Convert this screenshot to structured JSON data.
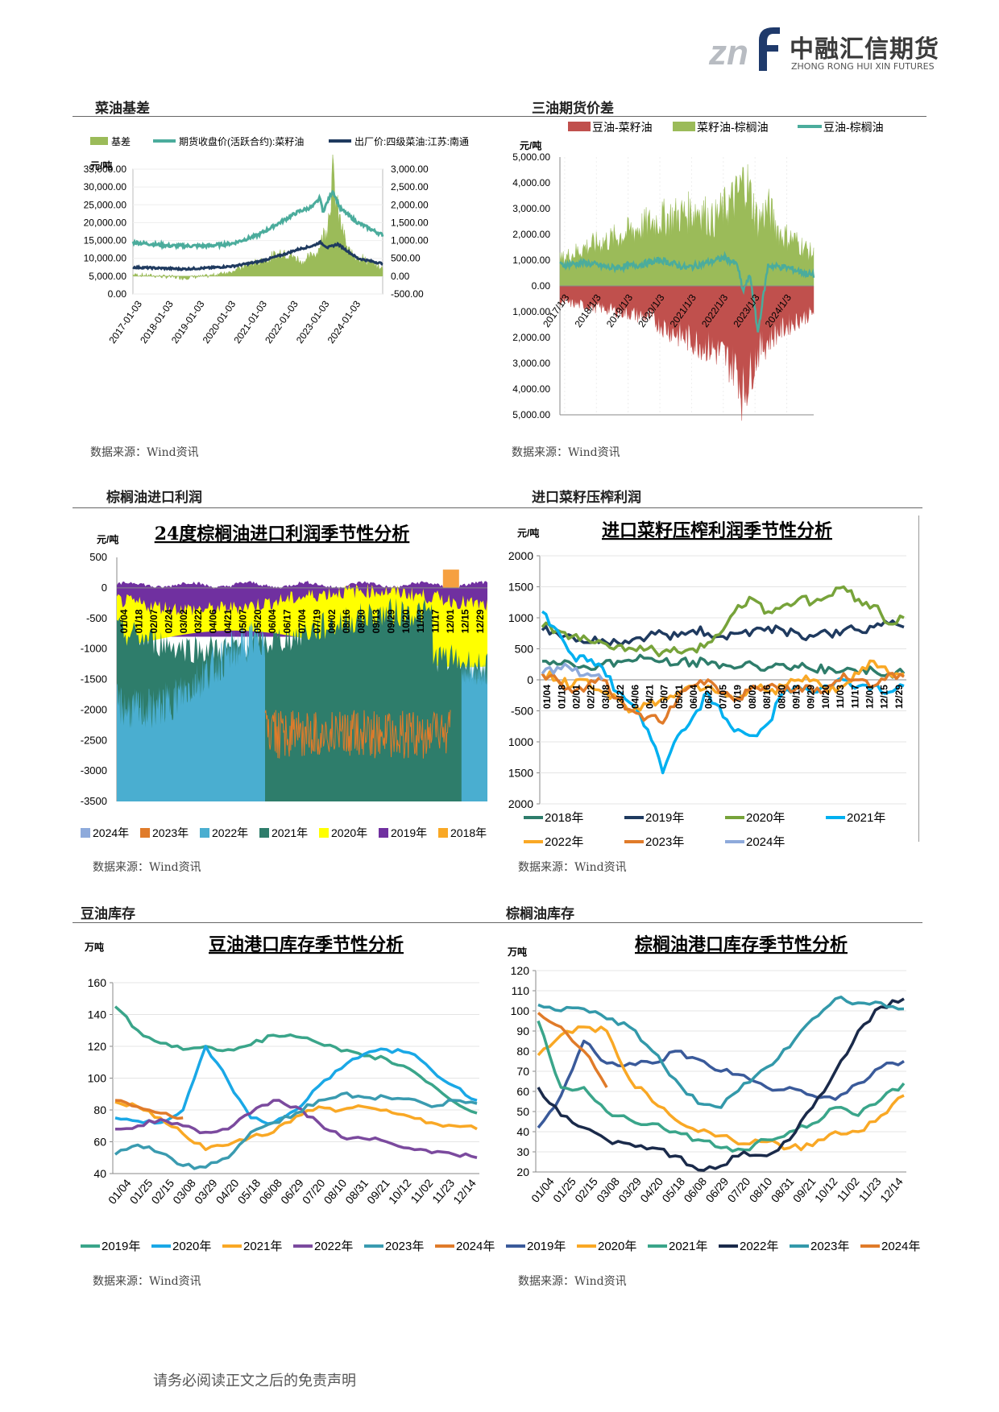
{
  "logo": {
    "cn": "中融汇信期货",
    "en": "ZHONG RONG HUI XIN FUTURES",
    "mark": "znf"
  },
  "sections": [
    {
      "title": "菜油基差",
      "source": "数据来源：Wind资讯"
    },
    {
      "title": "三油期货价差",
      "source": "数据来源：Wind资讯"
    },
    {
      "title": "棕榈油进口利润",
      "source": "数据来源：Wind资讯"
    },
    {
      "title": "进口菜籽压榨利润",
      "source": "数据来源：Wind资讯"
    },
    {
      "title": "豆油库存",
      "source": "数据来源：Wind资讯"
    },
    {
      "title": "棕榈油库存",
      "source": "数据来源：Wind资讯"
    }
  ],
  "footer": "请务必阅读正文之后的免责声明",
  "colors": {
    "green": "#9bbb59",
    "teal": "#4bac9c",
    "navy": "#1f3a5f",
    "red": "#c0504d",
    "yellow": "#ffff00",
    "darkgreen": "#2e7d6b",
    "cyan": "#00b0f0",
    "orange": "#f9a825",
    "dorange": "#e07b2a",
    "lblue": "#8eaadb",
    "purple": "#7030a0",
    "slate": "#3a5a9a",
    "dteal": "#3399aa"
  },
  "chart_data": [
    {
      "type": "line",
      "unit": "元/吨",
      "series": [
        {
          "name": "基差"
        },
        {
          "name": "期货收盘价(活跃合约):菜籽油"
        },
        {
          "name": "出厂价:四级菜油:江苏:南通"
        }
      ],
      "y_left_ticks": [
        "35,000.00",
        "30,000.00",
        "25,000.00",
        "20,000.00",
        "15,000.00",
        "10,000.00",
        "5,000.00",
        "0.00"
      ],
      "y_right_ticks": [
        "3,000.00",
        "2,500.00",
        "2,000.00",
        "1,500.00",
        "1,000.00",
        "500.00",
        "0.00",
        "-500.00"
      ],
      "ylim_left": [
        0,
        35000
      ],
      "ylim_right": [
        -500,
        3000
      ],
      "x_ticks": [
        "2017-01-03",
        "2018-01-03",
        "2019-01-03",
        "2020-01-03",
        "2021-01-03",
        "2022-01-03",
        "2023-01-03",
        "2024-01-03"
      ],
      "futures_path": [
        [
          0,
          14500
        ],
        [
          0.15,
          13500
        ],
        [
          0.3,
          13500
        ],
        [
          0.4,
          14200
        ],
        [
          0.5,
          16500
        ],
        [
          0.6,
          20500
        ],
        [
          0.66,
          23000
        ],
        [
          0.72,
          24500
        ],
        [
          0.75,
          27000
        ],
        [
          0.76,
          23000
        ],
        [
          0.8,
          29000
        ],
        [
          0.83,
          24000
        ],
        [
          0.9,
          20000
        ],
        [
          1,
          16500
        ]
      ],
      "spot_path": [
        [
          0,
          7500
        ],
        [
          0.2,
          7000
        ],
        [
          0.3,
          7300
        ],
        [
          0.4,
          7800
        ],
        [
          0.5,
          9000
        ],
        [
          0.6,
          11000
        ],
        [
          0.66,
          12500
        ],
        [
          0.72,
          13500
        ],
        [
          0.75,
          14500
        ],
        [
          0.78,
          13000
        ],
        [
          0.82,
          14000
        ],
        [
          0.9,
          10000
        ],
        [
          1,
          8500
        ]
      ],
      "basis_path": [
        [
          0,
          50
        ],
        [
          0.2,
          -50
        ],
        [
          0.3,
          0
        ],
        [
          0.4,
          150
        ],
        [
          0.45,
          300
        ],
        [
          0.55,
          500
        ],
        [
          0.6,
          700
        ],
        [
          0.68,
          400
        ],
        [
          0.74,
          700
        ],
        [
          0.78,
          1500
        ],
        [
          0.8,
          2800
        ],
        [
          0.82,
          1800
        ],
        [
          0.86,
          700
        ],
        [
          1,
          200
        ]
      ]
    },
    {
      "type": "area",
      "unit": "元/吨",
      "series": [
        {
          "name": "豆油-菜籽油"
        },
        {
          "name": "菜籽油-棕榈油"
        },
        {
          "name": "豆油-棕榈油"
        }
      ],
      "y_ticks": [
        "5,000.00",
        "4,000.00",
        "3,000.00",
        "2,000.00",
        "1,000.00",
        "0.00",
        "1,000.00",
        "2,000.00",
        "3,000.00",
        "4,000.00",
        "5,000.00"
      ],
      "ylim": [
        -5000,
        5000
      ],
      "x_ticks": [
        "2017/1/3",
        "2018/1/3",
        "2019/1/3",
        "2020/1/3",
        "2021/1/3",
        "2022/1/3",
        "2023/1/3",
        "2024/1/3"
      ],
      "soy_rape_path": [
        [
          0,
          -600
        ],
        [
          0.2,
          -900
        ],
        [
          0.35,
          -1200
        ],
        [
          0.45,
          -1800
        ],
        [
          0.55,
          -2200
        ],
        [
          0.62,
          -2500
        ],
        [
          0.7,
          -3200
        ],
        [
          0.72,
          -4200
        ],
        [
          0.78,
          -2500
        ],
        [
          0.85,
          -1800
        ],
        [
          0.9,
          -1500
        ],
        [
          1,
          -1000
        ]
      ],
      "rape_palm_path": [
        [
          0,
          1000
        ],
        [
          0.1,
          1500
        ],
        [
          0.2,
          1800
        ],
        [
          0.3,
          2200
        ],
        [
          0.4,
          2600
        ],
        [
          0.5,
          2800
        ],
        [
          0.55,
          3000
        ],
        [
          0.6,
          2500
        ],
        [
          0.7,
          3500
        ],
        [
          0.73,
          4200
        ],
        [
          0.78,
          2500
        ],
        [
          0.82,
          3000
        ],
        [
          0.87,
          2000
        ],
        [
          0.92,
          1800
        ],
        [
          1,
          1200
        ]
      ],
      "soy_palm_path": [
        [
          0,
          800
        ],
        [
          0.1,
          900
        ],
        [
          0.2,
          700
        ],
        [
          0.3,
          800
        ],
        [
          0.4,
          1000
        ],
        [
          0.5,
          700
        ],
        [
          0.58,
          900
        ],
        [
          0.65,
          1100
        ],
        [
          0.7,
          800
        ],
        [
          0.72,
          -200
        ],
        [
          0.75,
          400
        ],
        [
          0.78,
          -1800
        ],
        [
          0.82,
          800
        ],
        [
          0.9,
          700
        ],
        [
          1,
          400
        ]
      ]
    },
    {
      "type": "area",
      "title": "24度棕榈油进口利润季节性分析",
      "unit": "元/吨",
      "y_ticks": [
        "500",
        "0",
        "-500",
        "-1000",
        "-1500",
        "-2000",
        "-2500",
        "-3000",
        "-3500"
      ],
      "ylim": [
        -3500,
        500
      ],
      "x_ticks": [
        "01/04",
        "01/18",
        "02/07",
        "02/24",
        "03/02",
        "03/22",
        "04/06",
        "04/21",
        "05/07",
        "05/20",
        "06/04",
        "06/17",
        "07/04",
        "07/19",
        "08/02",
        "08/16",
        "08/30",
        "09/13",
        "09/29",
        "10/20",
        "11/03",
        "11/17",
        "12/01",
        "12/15",
        "12/29"
      ],
      "series": [
        {
          "name": "2024年"
        },
        {
          "name": "2023年"
        },
        {
          "name": "2022年"
        },
        {
          "name": "2021年"
        },
        {
          "name": "2020年"
        },
        {
          "name": "2019年"
        },
        {
          "name": "2018年"
        }
      ]
    },
    {
      "type": "line",
      "title": "进口菜籽压榨利润季节性分析",
      "unit": "元/吨",
      "y_ticks": [
        "2000",
        "1500",
        "1000",
        "500",
        "0",
        "-500",
        "1000",
        "1500",
        "2000"
      ],
      "ylim": [
        -2000,
        2000
      ],
      "x_ticks": [
        "01/04",
        "01/18",
        "02/01",
        "02/22",
        "03/08",
        "03/22",
        "04/06",
        "04/21",
        "05/07",
        "05/21",
        "06/04",
        "06/21",
        "07/05",
        "07/19",
        "08/02",
        "08/16",
        "08/30",
        "09/13",
        "09/29",
        "10/20",
        "11/03",
        "11/17",
        "12/01",
        "12/15",
        "12/29"
      ],
      "series": [
        {
          "name": "2018年",
          "values": [
            300,
            250,
            250,
            200,
            250,
            300,
            300,
            350,
            300,
            250,
            300,
            250,
            250,
            200,
            250,
            200,
            250,
            200,
            150,
            200,
            150,
            100,
            150,
            100,
            100
          ]
        },
        {
          "name": "2019年",
          "values": [
            800,
            750,
            700,
            600,
            650,
            600,
            650,
            700,
            750,
            700,
            800,
            750,
            700,
            750,
            800,
            850,
            800,
            750,
            700,
            750,
            800,
            800,
            850,
            900,
            850
          ]
        },
        {
          "name": "2020年",
          "values": [
            850,
            800,
            700,
            650,
            600,
            550,
            500,
            500,
            450,
            450,
            500,
            600,
            800,
            1200,
            1300,
            1100,
            1200,
            1300,
            1250,
            1350,
            1500,
            1300,
            1200,
            900,
            1000
          ]
        },
        {
          "name": "2021年",
          "values": [
            1100,
            800,
            400,
            300,
            200,
            -200,
            -400,
            -800,
            -1500,
            -900,
            -600,
            -200,
            -600,
            -800,
            -900,
            -700,
            -200,
            -100,
            -200,
            -100,
            0,
            -100,
            -100,
            -200,
            -100
          ]
        },
        {
          "name": "2022年",
          "values": [
            100,
            0,
            -100,
            0,
            -200,
            -300,
            -500,
            -400,
            -300,
            -200,
            -100,
            -100,
            -200,
            -300,
            -100,
            -200,
            -100,
            0,
            0,
            -200,
            -100,
            100,
            300,
            100,
            100
          ]
        },
        {
          "name": "2023年",
          "values": [
            100,
            0,
            -200,
            -100,
            0,
            -300,
            -500,
            -600,
            -700,
            -300,
            -100,
            0,
            -200,
            -300,
            -100,
            -100,
            -200,
            -100,
            -200,
            -100,
            100,
            0,
            -100,
            100,
            50
          ]
        },
        {
          "name": "2024年",
          "values": [
            100,
            200,
            150,
            100,
            0,
            null,
            null,
            null,
            null,
            null,
            null,
            null,
            null,
            null,
            null,
            null,
            null,
            null,
            null,
            null,
            null,
            null,
            null,
            null,
            null
          ]
        }
      ]
    },
    {
      "type": "line",
      "title": "豆油港口库存季节性分析",
      "unit": "万吨",
      "y_ticks": [
        "160",
        "140",
        "120",
        "100",
        "80",
        "60",
        "40"
      ],
      "ylim": [
        40,
        160
      ],
      "x_ticks": [
        "01/04",
        "01/25",
        "02/15",
        "03/08",
        "03/29",
        "04/20",
        "05/18",
        "06/08",
        "06/29",
        "07/20",
        "08/10",
        "08/31",
        "09/21",
        "10/12",
        "11/02",
        "11/23",
        "12/14"
      ],
      "series": [
        {
          "name": "2019年",
          "values": [
            145,
            130,
            122,
            118,
            120,
            118,
            121,
            127,
            126,
            122,
            117,
            114,
            112,
            106,
            96,
            85,
            78
          ]
        },
        {
          "name": "2020年",
          "values": [
            75,
            73,
            72,
            80,
            120,
            98,
            75,
            72,
            80,
            95,
            106,
            115,
            118,
            116,
            105,
            95,
            86
          ]
        },
        {
          "name": "2021年",
          "values": [
            85,
            82,
            75,
            65,
            55,
            58,
            63,
            66,
            76,
            82,
            80,
            82,
            80,
            76,
            72,
            70,
            68
          ]
        },
        {
          "name": "2022年",
          "values": [
            68,
            70,
            74,
            70,
            66,
            68,
            78,
            86,
            82,
            72,
            63,
            62,
            60,
            56,
            53,
            52,
            50
          ]
        },
        {
          "name": "2023年",
          "values": [
            52,
            58,
            53,
            45,
            44,
            50,
            66,
            72,
            78,
            86,
            90,
            88,
            88,
            87,
            82,
            86,
            84
          ]
        },
        {
          "name": "2024年",
          "values": [
            86,
            82,
            78,
            75,
            null,
            null,
            null,
            null,
            null,
            null,
            null,
            null,
            null,
            null,
            null,
            null,
            null
          ]
        }
      ]
    },
    {
      "type": "line",
      "title": "棕榈油港口库存季节性分析",
      "unit": "万吨",
      "y_ticks": [
        "120",
        "110",
        "100",
        "90",
        "80",
        "70",
        "60",
        "50",
        "40",
        "30",
        "20"
      ],
      "ylim": [
        20,
        120
      ],
      "x_ticks": [
        "01/04",
        "01/25",
        "02/15",
        "03/08",
        "03/29",
        "04/20",
        "05/18",
        "06/08",
        "06/29",
        "07/20",
        "08/10",
        "08/31",
        "09/21",
        "10/12",
        "11/02",
        "11/23",
        "12/14"
      ],
      "series": [
        {
          "name": "2019年",
          "values": [
            42,
            58,
            85,
            74,
            74,
            74,
            80,
            76,
            70,
            68,
            62,
            62,
            58,
            56,
            64,
            72,
            75
          ]
        },
        {
          "name": "2020年",
          "values": [
            78,
            88,
            92,
            90,
            66,
            55,
            46,
            40,
            38,
            34,
            35,
            32,
            33,
            40,
            40,
            48,
            58
          ]
        },
        {
          "name": "2021年",
          "values": [
            95,
            62,
            62,
            50,
            46,
            44,
            40,
            36,
            32,
            31,
            36,
            40,
            44,
            52,
            48,
            56,
            64
          ]
        },
        {
          "name": "2022年",
          "values": [
            62,
            48,
            42,
            36,
            34,
            32,
            28,
            21,
            23,
            30,
            28,
            36,
            52,
            70,
            90,
            102,
            106
          ]
        },
        {
          "name": "2023年",
          "values": [
            103,
            100,
            101,
            96,
            92,
            80,
            66,
            54,
            52,
            64,
            72,
            82,
            96,
            106,
            104,
            104,
            101
          ]
        },
        {
          "name": "2024年",
          "values": [
            99,
            92,
            80,
            62,
            null,
            null,
            null,
            null,
            null,
            null,
            null,
            null,
            null,
            null,
            null,
            null,
            null
          ]
        }
      ]
    }
  ]
}
